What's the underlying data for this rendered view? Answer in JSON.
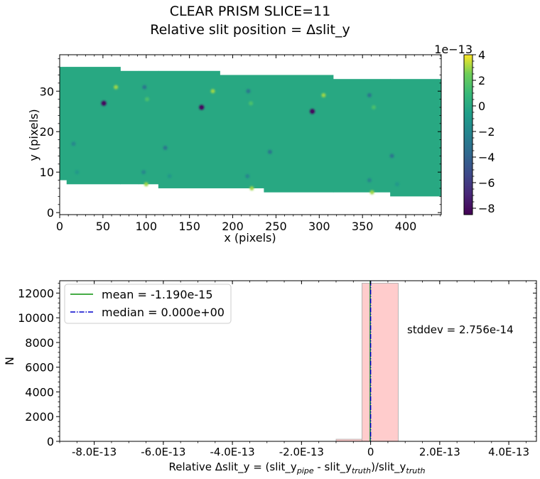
{
  "figure": {
    "title_line1": "CLEAR   PRISM   SLICE=11",
    "title_line2": "Relative slit position = Δslit_y"
  },
  "chart_data": [
    {
      "type": "heatmap",
      "xlabel": "x (pixels)",
      "ylabel": "y (pixels)",
      "xlim": [
        0,
        441
      ],
      "ylim": [
        -0.5,
        39
      ],
      "xticks": [
        0,
        50,
        100,
        150,
        200,
        250,
        300,
        350,
        400
      ],
      "yticks": [
        0,
        10,
        20,
        30
      ],
      "background_value": 0,
      "coverage_segments": [
        {
          "x": [
            0,
            8
          ],
          "y": [
            8,
            36
          ]
        },
        {
          "x": [
            8,
            70
          ],
          "y": [
            7,
            36
          ]
        },
        {
          "x": [
            70,
            91
          ],
          "y": [
            7,
            35
          ]
        },
        {
          "x": [
            91,
            114
          ],
          "y": [
            7,
            35
          ]
        },
        {
          "x": [
            114,
            185
          ],
          "y": [
            6,
            35
          ]
        },
        {
          "x": [
            185,
            236
          ],
          "y": [
            6,
            34
          ]
        },
        {
          "x": [
            236,
            316
          ],
          "y": [
            5,
            34
          ]
        },
        {
          "x": [
            316,
            382
          ],
          "y": [
            5,
            33
          ]
        },
        {
          "x": [
            382,
            441
          ],
          "y": [
            4,
            33
          ]
        }
      ],
      "features": [
        {
          "x": 51,
          "y": 27,
          "value": -8e-13
        },
        {
          "x": 164,
          "y": 26,
          "value": -8e-13
        },
        {
          "x": 292,
          "y": 25,
          "value": -8e-13
        },
        {
          "x": 98,
          "y": 31,
          "value": -3e-13
        },
        {
          "x": 218,
          "y": 30,
          "value": -3e-13
        },
        {
          "x": 358,
          "y": 29,
          "value": -3e-13
        },
        {
          "x": 122,
          "y": 16,
          "value": -3e-13
        },
        {
          "x": 243,
          "y": 15,
          "value": -3e-13
        },
        {
          "x": 384,
          "y": 14,
          "value": -3e-13
        },
        {
          "x": 16,
          "y": 17,
          "value": -2e-13
        },
        {
          "x": 97,
          "y": 10,
          "value": -2e-13
        },
        {
          "x": 217,
          "y": 9,
          "value": -2e-13
        },
        {
          "x": 358,
          "y": 8,
          "value": -2e-13
        },
        {
          "x": 65,
          "y": 31,
          "value": 3e-13
        },
        {
          "x": 177,
          "y": 30,
          "value": 3e-13
        },
        {
          "x": 305,
          "y": 29,
          "value": 3e-13
        },
        {
          "x": 100,
          "y": 7,
          "value": 3e-13
        },
        {
          "x": 222,
          "y": 6,
          "value": 3e-13
        },
        {
          "x": 361,
          "y": 5,
          "value": 3e-13
        },
        {
          "x": 101,
          "y": 28,
          "value": 1.5e-13
        },
        {
          "x": 221,
          "y": 27,
          "value": 1.5e-13
        },
        {
          "x": 363,
          "y": 26,
          "value": 1.5e-13
        },
        {
          "x": 20,
          "y": 10,
          "value": -1e-13
        },
        {
          "x": 127,
          "y": 9,
          "value": -1e-13
        },
        {
          "x": 390,
          "y": 7,
          "value": -1e-13
        }
      ],
      "colorbar": {
        "min": -8.5e-13,
        "max": 4e-13,
        "ticks": [
          4,
          2,
          0,
          -2,
          -4,
          -6,
          -8
        ],
        "tick_labels": [
          "4",
          "2",
          "0",
          "−2",
          "−4",
          "−6",
          "−8"
        ],
        "offset_text": "1e−13",
        "colormap": "viridis"
      }
    },
    {
      "type": "bar",
      "title": "",
      "xlabel": "Relative Δslit_y = (slit_y",
      "xlabel_sub1": "pipe",
      "xlabel_mid": " - slit_y",
      "xlabel_sub2": "truth",
      "xlabel_end": ")/slit_y",
      "xlabel_sub3": "truth",
      "ylabel": "N",
      "xlim": [
        -9e-13,
        4.8e-13
      ],
      "ylim": [
        0,
        13000
      ],
      "xticks": [
        -8e-13,
        -6e-13,
        -4e-13,
        -2e-13,
        0,
        2e-13,
        4e-13
      ],
      "xtick_labels": [
        "-8.0E-13",
        "-6.0E-13",
        "-4.0E-13",
        "-2.0E-13",
        "0",
        "2.0E-13",
        "4.0E-13"
      ],
      "yticks": [
        0,
        2000,
        4000,
        6000,
        8000,
        10000,
        12000
      ],
      "ytick_labels": [
        "0",
        "2000",
        "4000",
        "6000",
        "8000",
        "10000",
        "12000"
      ],
      "bins": [
        {
          "x0": -1e-13,
          "x1": -2.5e-14,
          "count": 170
        },
        {
          "x0": -2.5e-14,
          "x1": 0,
          "count": 12800
        },
        {
          "x0": 0,
          "x1": 8e-14,
          "count": 12800
        }
      ],
      "mean": -1.19e-15,
      "median": 0,
      "legend": [
        {
          "label": "mean = -1.190e-15",
          "color": "#2ca02c",
          "style": "solid"
        },
        {
          "label": "median = 0.000e+00",
          "color": "#0000cc",
          "style": "dashdot"
        }
      ],
      "legend_position": "upper-left",
      "annotation": "stddev = 2.756e-14",
      "bar_color": "#ffcccc",
      "bar_edge": "#aaaaaa"
    }
  ]
}
